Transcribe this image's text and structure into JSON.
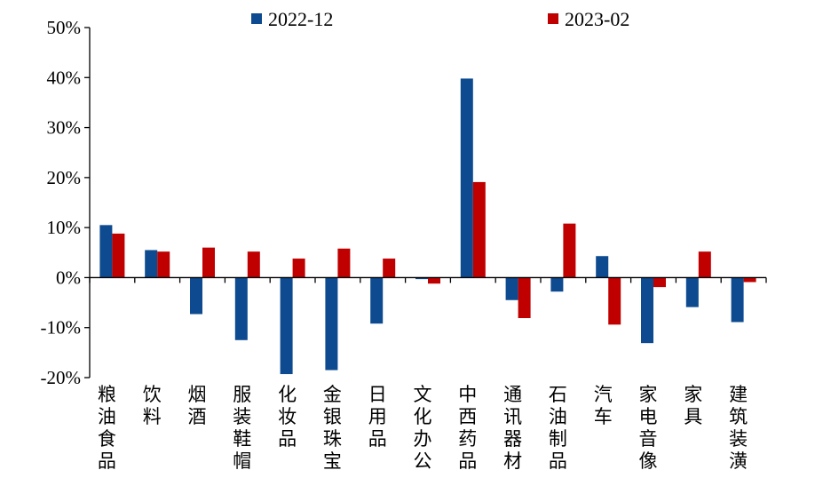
{
  "chart_data": {
    "type": "bar",
    "title": "",
    "xlabel": "",
    "ylabel": "",
    "ylim": [
      -20,
      50
    ],
    "yticks": [
      -20,
      -10,
      0,
      10,
      20,
      30,
      40,
      50
    ],
    "ytick_labels": [
      "-20%",
      "-10%",
      "0%",
      "10%",
      "20%",
      "30%",
      "40%",
      "50%"
    ],
    "grid": false,
    "legend_position": "top-center",
    "categories": [
      "粮油食品",
      "饮料",
      "烟酒",
      "服装鞋帽",
      "化妆品",
      "金银珠宝",
      "日用品",
      "文化办公",
      "中西药品",
      "通讯器材",
      "石油制品",
      "汽车",
      "家电音像",
      "家具",
      "建筑装潢"
    ],
    "series": [
      {
        "name": "2022-12",
        "color": "#0D4A8F",
        "values": [
          10.5,
          5.5,
          -7.3,
          -12.5,
          -19.3,
          -18.5,
          -9.2,
          -0.3,
          39.8,
          -4.5,
          -2.8,
          4.3,
          -13.1,
          -5.9,
          -8.9
        ]
      },
      {
        "name": "2023-02",
        "color": "#C00000",
        "values": [
          8.8,
          5.2,
          6.0,
          5.2,
          3.8,
          5.8,
          3.8,
          -1.2,
          19.1,
          -8.1,
          10.8,
          -9.4,
          -1.9,
          5.2,
          -0.9
        ]
      }
    ]
  }
}
